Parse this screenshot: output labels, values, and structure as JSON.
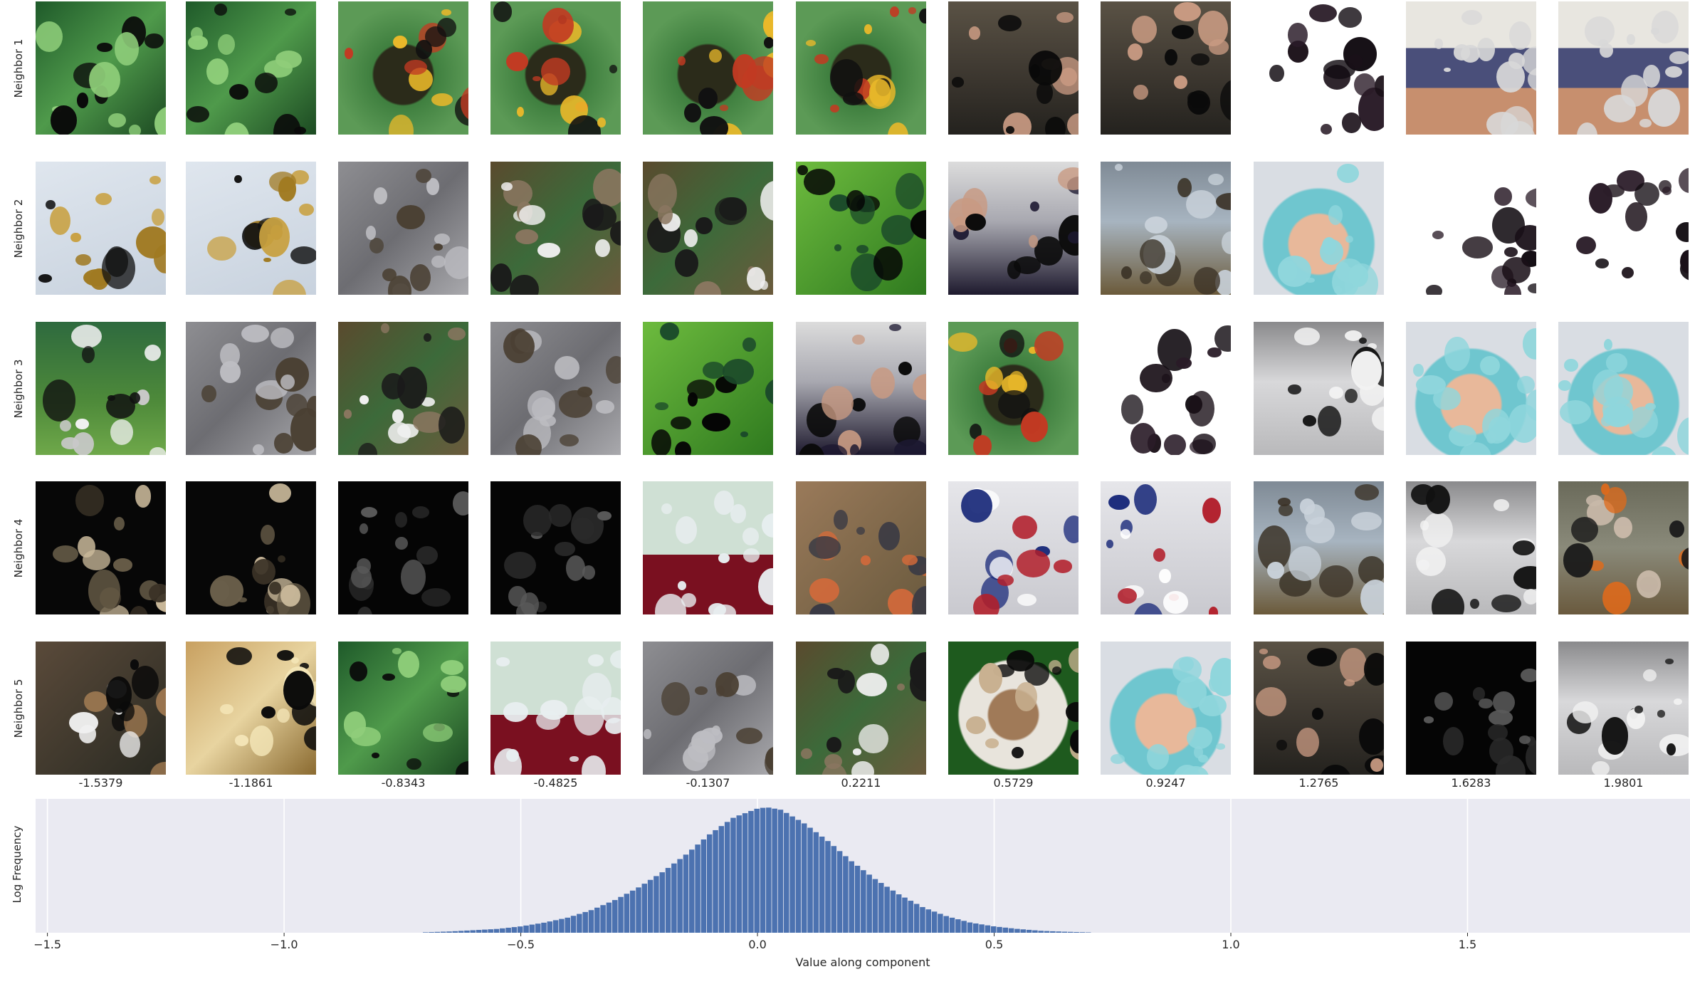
{
  "row_labels": [
    "Neighbor 1",
    "Neighbor 2",
    "Neighbor 3",
    "Neighbor 4",
    "Neighbor 5"
  ],
  "column_values": [
    "-1.5379",
    "-1.1861",
    "-0.8343",
    "-0.4825",
    "-0.1307",
    "0.2211",
    "0.5729",
    "0.9247",
    "1.2765",
    "1.6283",
    "1.9801"
  ],
  "thumbnails": [
    [
      "palm-fronds",
      "palm-fronds",
      "yellow-black-snake",
      "yellow-black-snake",
      "yellow-black-snake",
      "yellow-black-snake",
      "person-office",
      "person-office",
      "dark-suit-cutout",
      "person-skirt",
      "person-skirt"
    ],
    [
      "scorpions",
      "scorpions",
      "gray-snake-rock",
      "chickadee-branch",
      "chickadee-branch",
      "green-beetles",
      "graduates",
      "gray-rock-grass",
      "hairnet-woman",
      "dark-suit-cutout",
      "dark-suit-cutout"
    ],
    [
      "dogs-grass",
      "gray-snake-rock",
      "chickadee-branch",
      "gray-snake-rock",
      "green-beetles",
      "graduates",
      "yellow-black-snake",
      "dark-suit-cutout",
      "plastic-sheet",
      "hairnet-woman",
      "hairnet-woman"
    ],
    [
      "dark-patches",
      "dark-patches",
      "near-black",
      "near-black",
      "glass-red-cloth",
      "finch-branches",
      "pens-pocket",
      "pens-pocket",
      "gray-rock-grass",
      "plastic-sheet",
      "people-park"
    ],
    [
      "dogs-pack",
      "pastry-plate",
      "palm-fronds",
      "glass-red-cloth",
      "gray-snake-rock",
      "chickadee-branch",
      "doll-bonnet",
      "hairnet-woman",
      "person-office",
      "near-black",
      "plastic-sheet"
    ]
  ],
  "chart_data": {
    "type": "bar",
    "xlabel": "Value along component",
    "ylabel": "Log Frequency",
    "xlim": [
      -1.525,
      1.97
    ],
    "xticks": [
      -1.5,
      -1.0,
      -0.5,
      0.0,
      0.5,
      1.0,
      1.5
    ],
    "xtick_labels": [
      "−1.5",
      "−1.0",
      "−0.5",
      "0.0",
      "0.5",
      "1.0",
      "1.5"
    ],
    "grid": true,
    "bar_color": "#4c72b0",
    "background": "#eaeaf2",
    "bin_width": 0.0125,
    "bins": [
      {
        "x": -0.65,
        "y": 0.01
      },
      {
        "x": -0.6,
        "y": 0.02
      },
      {
        "x": -0.55,
        "y": 0.03
      },
      {
        "x": -0.5,
        "y": 0.05
      },
      {
        "x": -0.45,
        "y": 0.08
      },
      {
        "x": -0.4,
        "y": 0.12
      },
      {
        "x": -0.35,
        "y": 0.18
      },
      {
        "x": -0.3,
        "y": 0.26
      },
      {
        "x": -0.25,
        "y": 0.36
      },
      {
        "x": -0.2,
        "y": 0.48
      },
      {
        "x": -0.15,
        "y": 0.62
      },
      {
        "x": -0.1,
        "y": 0.78
      },
      {
        "x": -0.05,
        "y": 0.91
      },
      {
        "x": 0.0,
        "y": 0.98
      },
      {
        "x": 0.02,
        "y": 0.99
      },
      {
        "x": 0.05,
        "y": 0.97
      },
      {
        "x": 0.1,
        "y": 0.86
      },
      {
        "x": 0.15,
        "y": 0.72
      },
      {
        "x": 0.2,
        "y": 0.56
      },
      {
        "x": 0.25,
        "y": 0.42
      },
      {
        "x": 0.3,
        "y": 0.3
      },
      {
        "x": 0.35,
        "y": 0.2
      },
      {
        "x": 0.4,
        "y": 0.13
      },
      {
        "x": 0.45,
        "y": 0.08
      },
      {
        "x": 0.5,
        "y": 0.05
      },
      {
        "x": 0.55,
        "y": 0.03
      },
      {
        "x": 0.6,
        "y": 0.015
      },
      {
        "x": 0.65,
        "y": 0.008
      }
    ]
  }
}
